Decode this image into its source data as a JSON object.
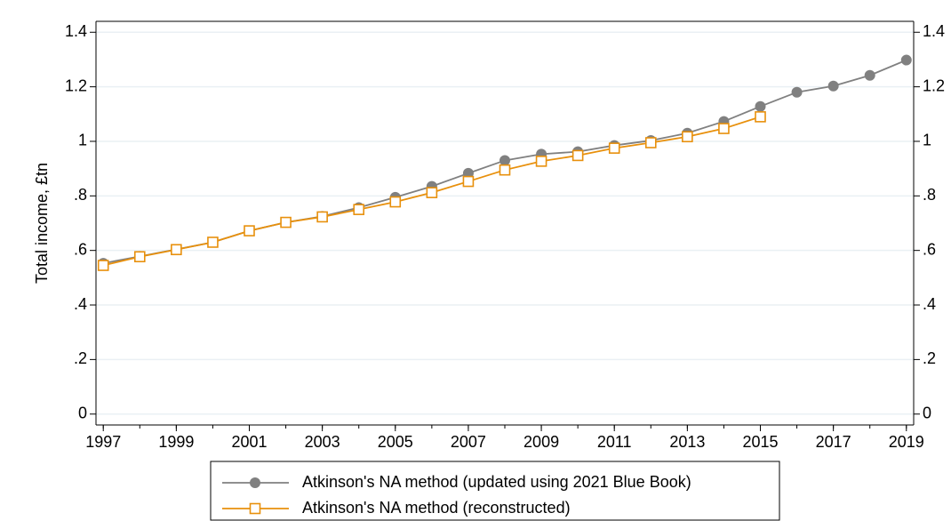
{
  "chart_data": {
    "type": "line",
    "y_label": "Total income, £tn",
    "x": [
      1997,
      1998,
      1999,
      2000,
      2001,
      2002,
      2003,
      2004,
      2005,
      2006,
      2007,
      2008,
      2009,
      2010,
      2011,
      2012,
      2013,
      2014,
      2015,
      2016,
      2017,
      2018,
      2019
    ],
    "series": [
      {
        "name": "Atkinson's NA method (updated using 2021 Blue Book)",
        "color": "#808080",
        "marker": "circle",
        "values": [
          0.553,
          0.578,
          0.604,
          0.63,
          0.672,
          0.703,
          0.725,
          0.757,
          0.795,
          0.835,
          0.883,
          0.93,
          0.953,
          0.962,
          0.985,
          1.003,
          1.03,
          1.073,
          1.128,
          1.18,
          1.203,
          1.242,
          1.298
        ]
      },
      {
        "name": "Atkinson's NA method (reconstructed)",
        "color": "#e8900c",
        "marker": "square",
        "values": [
          0.545,
          0.577,
          0.603,
          0.63,
          0.672,
          0.703,
          0.723,
          0.75,
          0.778,
          0.812,
          0.853,
          0.895,
          0.927,
          0.948,
          0.975,
          0.995,
          1.017,
          1.047,
          1.09,
          null,
          null,
          null,
          null
        ]
      }
    ],
    "xlim": [
      1996.8,
      2019.2
    ],
    "xticks": [
      1997,
      1999,
      2001,
      2003,
      2005,
      2007,
      2009,
      2011,
      2013,
      2015,
      2017,
      2019
    ],
    "ylim": [
      -0.04,
      1.44
    ],
    "yticks": [
      0,
      {
        "value": 0.2,
        "label": ".2"
      },
      {
        "value": 0.4,
        "label": ".4"
      },
      {
        "value": 0.6,
        "label": ".6"
      },
      {
        "value": 0.8,
        "label": ".8"
      },
      1,
      1.2,
      1.4
    ],
    "grid": true,
    "legend": "bottom"
  }
}
